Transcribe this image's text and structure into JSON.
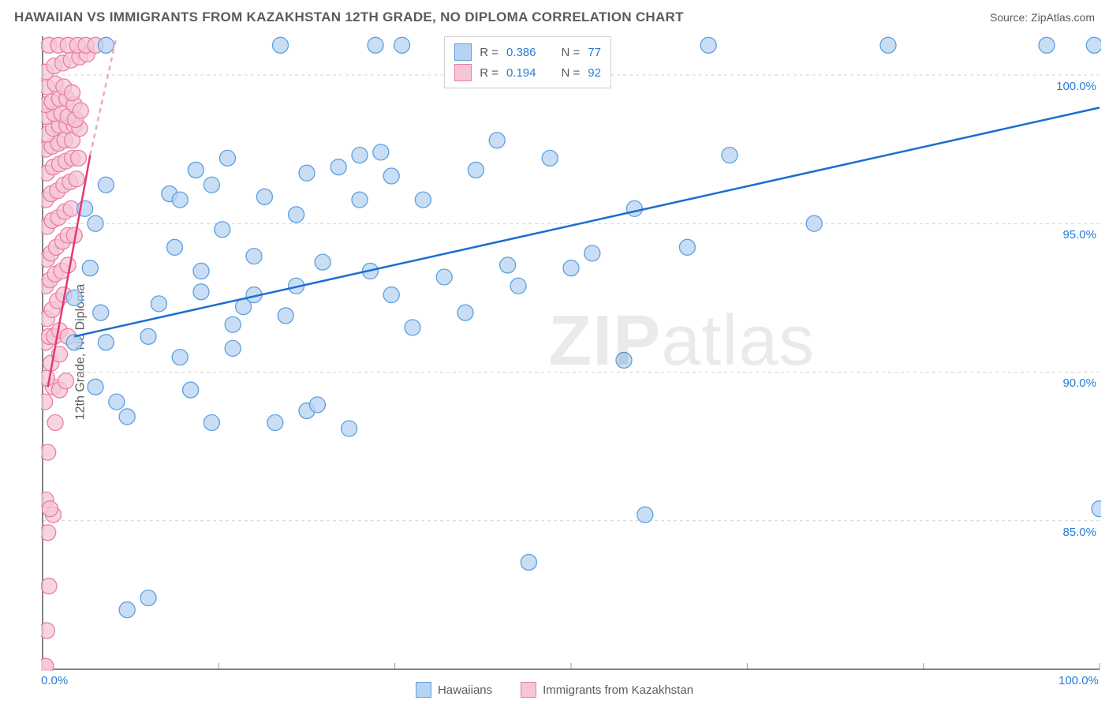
{
  "header": {
    "title": "HAWAIIAN VS IMMIGRANTS FROM KAZAKHSTAN 12TH GRADE, NO DIPLOMA CORRELATION CHART",
    "source": "Source: ZipAtlas.com"
  },
  "watermark": {
    "bold": "ZIP",
    "thin": "atlas"
  },
  "chart": {
    "type": "scatter",
    "background_color": "#ffffff",
    "grid_color": "#d4d4d4",
    "axis_color": "#5b5b5b",
    "tick_color": "#9e9e9e",
    "tick_label_color": "#277cd6",
    "marker_radius": 10,
    "marker_stroke_width": 1.3,
    "line_width": 2.5,
    "xlim": [
      0,
      100
    ],
    "ylim": [
      80,
      101.3
    ],
    "x_ticks": [
      0,
      16.67,
      33.33,
      50,
      66.67,
      83.33,
      100
    ],
    "x_tick_labels": {
      "0": "0.0%",
      "100": "100.0%"
    },
    "y_ticks": [
      85,
      90,
      95,
      100
    ],
    "y_tick_labels": {
      "85": "85.0%",
      "90": "90.0%",
      "95": "95.0%",
      "100": "100.0%"
    },
    "y_axis_label": "12th Grade, No Diploma",
    "series": {
      "hawaiians": {
        "label": "Hawaiians",
        "fill": "#b7d3f2",
        "stroke": "#5e9fe0",
        "line_color": "#1c6dd0",
        "R": "0.386",
        "N": "77",
        "trend": {
          "x1": 3,
          "y1": 91.2,
          "x2": 100,
          "y2": 98.9
        },
        "points": [
          [
            3,
            91
          ],
          [
            3,
            92.5
          ],
          [
            4,
            95.5
          ],
          [
            4.5,
            93.5
          ],
          [
            5,
            95
          ],
          [
            5,
            89.5
          ],
          [
            5.5,
            92
          ],
          [
            6,
            91
          ],
          [
            6,
            96.3
          ],
          [
            6,
            101
          ],
          [
            7,
            89
          ],
          [
            8,
            82
          ],
          [
            8,
            88.5
          ],
          [
            10,
            91.2
          ],
          [
            10,
            82.4
          ],
          [
            11,
            92.3
          ],
          [
            12,
            96
          ],
          [
            12.5,
            94.2
          ],
          [
            13,
            90.5
          ],
          [
            13,
            95.8
          ],
          [
            14,
            89.4
          ],
          [
            14.5,
            96.8
          ],
          [
            15,
            92.7
          ],
          [
            15,
            93.4
          ],
          [
            16,
            88.3
          ],
          [
            16,
            96.3
          ],
          [
            17,
            94.8
          ],
          [
            17.5,
            97.2
          ],
          [
            18,
            90.8
          ],
          [
            18,
            91.6
          ],
          [
            19,
            92.2
          ],
          [
            20,
            93.9
          ],
          [
            20,
            92.6
          ],
          [
            21,
            95.9
          ],
          [
            22,
            88.3
          ],
          [
            22.5,
            101
          ],
          [
            23,
            91.9
          ],
          [
            24,
            92.9
          ],
          [
            24,
            95.3
          ],
          [
            25,
            88.7
          ],
          [
            25,
            96.7
          ],
          [
            26,
            88.9
          ],
          [
            26.5,
            93.7
          ],
          [
            28,
            96.9
          ],
          [
            29,
            88.1
          ],
          [
            30,
            97.3
          ],
          [
            30,
            95.8
          ],
          [
            31,
            93.4
          ],
          [
            31.5,
            101
          ],
          [
            32,
            97.4
          ],
          [
            33,
            96.6
          ],
          [
            33,
            92.6
          ],
          [
            34,
            101
          ],
          [
            35,
            91.5
          ],
          [
            36,
            95.8
          ],
          [
            38,
            93.2
          ],
          [
            40,
            92
          ],
          [
            41,
            96.8
          ],
          [
            43,
            97.8
          ],
          [
            44,
            93.6
          ],
          [
            45,
            92.9
          ],
          [
            46,
            83.6
          ],
          [
            47,
            101
          ],
          [
            48,
            97.2
          ],
          [
            50,
            93.5
          ],
          [
            52,
            94
          ],
          [
            55,
            90.4
          ],
          [
            56,
            95.5
          ],
          [
            57,
            85.2
          ],
          [
            61,
            94.2
          ],
          [
            63,
            101
          ],
          [
            65,
            97.3
          ],
          [
            73,
            95
          ],
          [
            80,
            101
          ],
          [
            95,
            101
          ],
          [
            99.5,
            101
          ],
          [
            100,
            85.4
          ]
        ]
      },
      "kazakhstan": {
        "label": "Immigrants from Kazakhstan",
        "fill": "#f6c6d6",
        "stroke": "#e77fa4",
        "line_color": "#e53872",
        "dash_color": "#f2a7be",
        "R": "0.194",
        "N": "92",
        "trend": {
          "x1": 0.5,
          "y1": 89.5,
          "x2": 4.5,
          "y2": 97.3
        },
        "dash": {
          "x1": 4.5,
          "y1": 97.3,
          "x2": 7,
          "y2": 101.3
        },
        "points": [
          [
            0.3,
            80.1
          ],
          [
            0.3,
            80.1
          ],
          [
            0.4,
            81.3
          ],
          [
            0.6,
            82.8
          ],
          [
            0.5,
            84.6
          ],
          [
            0.3,
            85.7
          ],
          [
            1.0,
            85.2
          ],
          [
            0.7,
            85.4
          ],
          [
            0.5,
            87.3
          ],
          [
            1.2,
            88.3
          ],
          [
            0.2,
            89
          ],
          [
            1.0,
            89.5
          ],
          [
            0.4,
            89.8
          ],
          [
            1.6,
            89.4
          ],
          [
            2.2,
            89.7
          ],
          [
            0.8,
            90.3
          ],
          [
            1.6,
            90.6
          ],
          [
            0.3,
            91
          ],
          [
            0.6,
            91.2
          ],
          [
            1.1,
            91.2
          ],
          [
            1.6,
            91.4
          ],
          [
            2.4,
            91.2
          ],
          [
            0.4,
            91.8
          ],
          [
            0.9,
            92.1
          ],
          [
            1.4,
            92.4
          ],
          [
            2.0,
            92.6
          ],
          [
            0.3,
            92.9
          ],
          [
            0.7,
            93.1
          ],
          [
            1.2,
            93.3
          ],
          [
            1.8,
            93.4
          ],
          [
            2.4,
            93.6
          ],
          [
            0.4,
            93.8
          ],
          [
            0.8,
            94
          ],
          [
            1.3,
            94.2
          ],
          [
            1.9,
            94.4
          ],
          [
            2.4,
            94.6
          ],
          [
            3.0,
            94.6
          ],
          [
            0.4,
            94.9
          ],
          [
            0.9,
            95.1
          ],
          [
            1.5,
            95.2
          ],
          [
            2.1,
            95.4
          ],
          [
            2.7,
            95.5
          ],
          [
            0.3,
            95.8
          ],
          [
            0.8,
            96
          ],
          [
            1.4,
            96.1
          ],
          [
            2.0,
            96.3
          ],
          [
            2.6,
            96.4
          ],
          [
            3.2,
            96.5
          ],
          [
            0.4,
            96.7
          ],
          [
            1.0,
            96.9
          ],
          [
            1.6,
            97
          ],
          [
            2.2,
            97.1
          ],
          [
            2.8,
            97.2
          ],
          [
            3.4,
            97.2
          ],
          [
            0.3,
            97.5
          ],
          [
            0.9,
            97.6
          ],
          [
            1.5,
            97.7
          ],
          [
            2.1,
            97.8
          ],
          [
            2.8,
            97.8
          ],
          [
            0.4,
            98
          ],
          [
            1.0,
            98.2
          ],
          [
            1.6,
            98.3
          ],
          [
            2.3,
            98.3
          ],
          [
            3.0,
            98.3
          ],
          [
            3.5,
            98.2
          ],
          [
            0.4,
            98.6
          ],
          [
            1.1,
            98.7
          ],
          [
            1.8,
            98.7
          ],
          [
            2.4,
            98.6
          ],
          [
            3.1,
            98.5
          ],
          [
            0.3,
            99
          ],
          [
            0.9,
            99.1
          ],
          [
            1.6,
            99.2
          ],
          [
            2.3,
            99.2
          ],
          [
            3.0,
            99
          ],
          [
            3.6,
            98.8
          ],
          [
            0.4,
            99.6
          ],
          [
            1.2,
            99.7
          ],
          [
            2.0,
            99.6
          ],
          [
            2.8,
            99.4
          ],
          [
            0.3,
            100.1
          ],
          [
            1.1,
            100.3
          ],
          [
            1.9,
            100.4
          ],
          [
            2.7,
            100.5
          ],
          [
            3.5,
            100.6
          ],
          [
            4.2,
            100.7
          ],
          [
            0.6,
            101
          ],
          [
            1.5,
            101
          ],
          [
            2.4,
            101
          ],
          [
            3.3,
            101
          ],
          [
            4.1,
            101
          ],
          [
            5.0,
            101
          ]
        ]
      }
    },
    "rn_legend": {
      "rows": [
        {
          "series": "hawaiians",
          "R_label": "R =",
          "N_label": "N ="
        },
        {
          "series": "kazakhstan",
          "R_label": "R =",
          "N_label": "N ="
        }
      ]
    }
  }
}
